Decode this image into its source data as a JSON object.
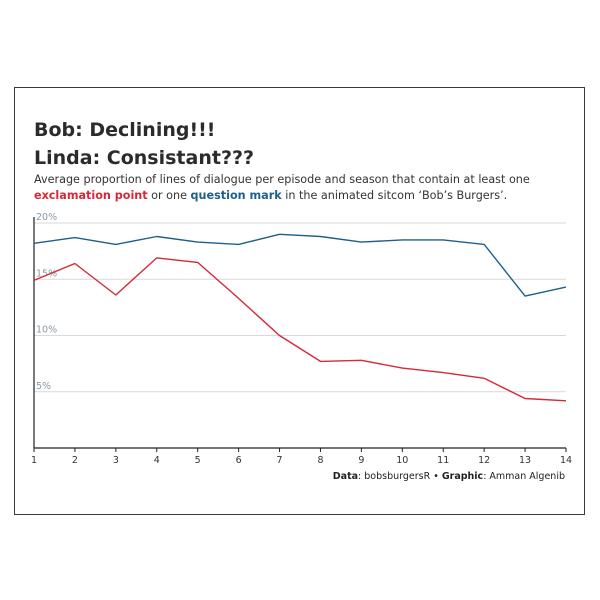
{
  "title_line1": "Bob: Declining!!!",
  "title_line2": "Linda: Consistant???",
  "subtitle": {
    "part1": "Average proportion of lines of dialogue per episode and season that contain at least one ",
    "exclamation": "exclamation point",
    "part2": " or one ",
    "question": "question mark",
    "part3": " in the animated sitcom ‘Bob’s Burgers’."
  },
  "caption": {
    "data_label": "Data",
    "data_value": ": bobsburgersR • ",
    "graphic_label": "Graphic",
    "graphic_value": ": Amman Algenib"
  },
  "colors": {
    "exclamation": "#d62839",
    "question": "#1f5f8b",
    "grid": "#d9d9d9",
    "tick_label": "#8a9aa6",
    "axis": "#222222"
  },
  "chart_data": {
    "type": "line",
    "x": [
      1,
      2,
      3,
      4,
      5,
      6,
      7,
      8,
      9,
      10,
      11,
      12,
      13,
      14
    ],
    "xlim": [
      1,
      14
    ],
    "ylim": [
      0,
      20
    ],
    "y_ticks": [
      5,
      10,
      15,
      20
    ],
    "y_tick_labels": [
      "5%",
      "10%",
      "15%",
      "20%"
    ],
    "x_tick_labels": [
      "1",
      "2",
      "3",
      "4",
      "5",
      "6",
      "7",
      "8",
      "9",
      "10",
      "11",
      "12",
      "13",
      "14"
    ],
    "grid": true,
    "series": [
      {
        "key": "question",
        "values": [
          18.2,
          18.7,
          18.1,
          18.8,
          18.3,
          18.1,
          19.0,
          18.8,
          18.3,
          18.5,
          18.5,
          18.1,
          13.5,
          14.3
        ]
      },
      {
        "key": "exclamation",
        "values": [
          14.9,
          16.4,
          13.6,
          16.9,
          16.5,
          13.3,
          10.0,
          7.7,
          7.8,
          7.1,
          6.7,
          6.2,
          4.4,
          4.2
        ]
      }
    ]
  }
}
